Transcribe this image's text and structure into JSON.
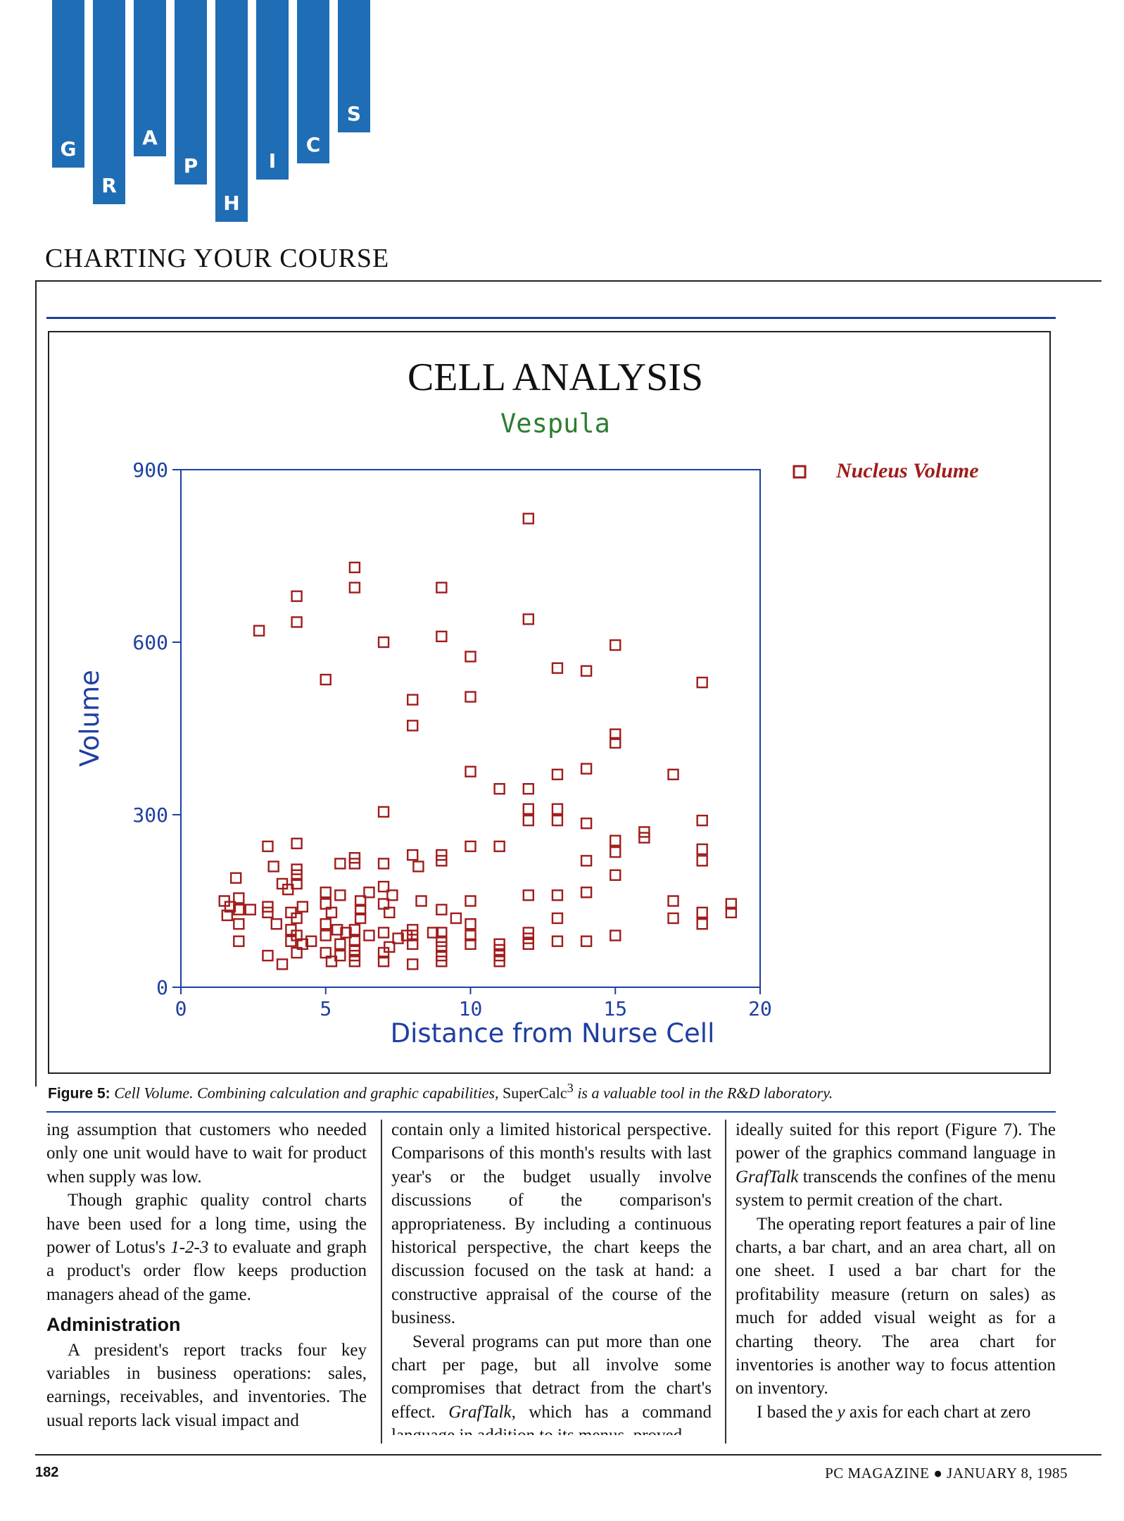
{
  "masthead": {
    "letters": [
      "G",
      "R",
      "A",
      "P",
      "H",
      "I",
      "C",
      "S"
    ],
    "accent_color": "#1f6db4"
  },
  "section_title": "CHARTING YOUR COURSE",
  "chart_data": {
    "type": "scatter",
    "title": "CELL ANALYSIS",
    "subtitle": "Vespula",
    "xlabel": "Distance from Nurse Cell",
    "ylabel": "Volume",
    "xlim": [
      0,
      20
    ],
    "ylim": [
      0,
      900
    ],
    "xticks": [
      0,
      5,
      10,
      15,
      20
    ],
    "yticks": [
      0,
      300,
      600,
      900
    ],
    "grid": false,
    "legend": {
      "placement": "top-right-outside",
      "entries": [
        "Nucleus Volume"
      ]
    },
    "colors": {
      "title": "#111111",
      "subtitle": "#2e7d32",
      "axis": "#1f3fa0",
      "marker": "#a01c1c"
    },
    "series": [
      {
        "name": "Nucleus Volume",
        "marker": "square",
        "points": [
          [
            12,
            815
          ],
          [
            6,
            730
          ],
          [
            6,
            695
          ],
          [
            9,
            695
          ],
          [
            4,
            680
          ],
          [
            4,
            635
          ],
          [
            12,
            640
          ],
          [
            2.7,
            620
          ],
          [
            7,
            600
          ],
          [
            9,
            610
          ],
          [
            15,
            595
          ],
          [
            10,
            575
          ],
          [
            13,
            555
          ],
          [
            14,
            550
          ],
          [
            18,
            530
          ],
          [
            5,
            535
          ],
          [
            8,
            500
          ],
          [
            10,
            505
          ],
          [
            8,
            455
          ],
          [
            15,
            440
          ],
          [
            15,
            425
          ],
          [
            10,
            375
          ],
          [
            14,
            380
          ],
          [
            13,
            370
          ],
          [
            17,
            370
          ],
          [
            11,
            345
          ],
          [
            12,
            345
          ],
          [
            7,
            305
          ],
          [
            12,
            310
          ],
          [
            13,
            310
          ],
          [
            12,
            290
          ],
          [
            13,
            290
          ],
          [
            14,
            285
          ],
          [
            18,
            290
          ],
          [
            16,
            270
          ],
          [
            16,
            260
          ],
          [
            15,
            255
          ],
          [
            15,
            235
          ],
          [
            18,
            240
          ],
          [
            18,
            220
          ],
          [
            3,
            245
          ],
          [
            4,
            250
          ],
          [
            10,
            245
          ],
          [
            11,
            245
          ],
          [
            8,
            230
          ],
          [
            9,
            230
          ],
          [
            9,
            220
          ],
          [
            14,
            220
          ],
          [
            6,
            225
          ],
          [
            6,
            215
          ],
          [
            5.5,
            215
          ],
          [
            7,
            215
          ],
          [
            8.2,
            210
          ],
          [
            3.2,
            210
          ],
          [
            4,
            205
          ],
          [
            4,
            195
          ],
          [
            3.5,
            180
          ],
          [
            4,
            180
          ],
          [
            1.9,
            190
          ],
          [
            3.7,
            170
          ],
          [
            15,
            195
          ],
          [
            5,
            165
          ],
          [
            5.5,
            160
          ],
          [
            6.5,
            165
          ],
          [
            7,
            175
          ],
          [
            7.3,
            160
          ],
          [
            6.2,
            150
          ],
          [
            6.2,
            135
          ],
          [
            5,
            145
          ],
          [
            5.2,
            130
          ],
          [
            7,
            145
          ],
          [
            7.2,
            130
          ],
          [
            8.3,
            150
          ],
          [
            10,
            150
          ],
          [
            12,
            160
          ],
          [
            13,
            160
          ],
          [
            14,
            165
          ],
          [
            17,
            150
          ],
          [
            17,
            120
          ],
          [
            19,
            145
          ],
          [
            19,
            130
          ],
          [
            18,
            130
          ],
          [
            18,
            110
          ],
          [
            1.5,
            150
          ],
          [
            1.7,
            140
          ],
          [
            1.6,
            125
          ],
          [
            2,
            155
          ],
          [
            2,
            135
          ],
          [
            2.4,
            135
          ],
          [
            2,
            110
          ],
          [
            2,
            80
          ],
          [
            3,
            140
          ],
          [
            3,
            130
          ],
          [
            3.3,
            110
          ],
          [
            3.8,
            130
          ],
          [
            4,
            120
          ],
          [
            4.2,
            140
          ],
          [
            3.8,
            100
          ],
          [
            4,
            90
          ],
          [
            3.8,
            80
          ],
          [
            4.2,
            75
          ],
          [
            4.5,
            80
          ],
          [
            9,
            135
          ],
          [
            9.5,
            120
          ],
          [
            10,
            110
          ],
          [
            10,
            90
          ],
          [
            10,
            75
          ],
          [
            9,
            95
          ],
          [
            9,
            80
          ],
          [
            8.7,
            95
          ],
          [
            8,
            100
          ],
          [
            8,
            90
          ],
          [
            8,
            75
          ],
          [
            13,
            120
          ],
          [
            13,
            80
          ],
          [
            14,
            80
          ],
          [
            15,
            90
          ],
          [
            12,
            95
          ],
          [
            12,
            85
          ],
          [
            12,
            75
          ],
          [
            11,
            75
          ],
          [
            11,
            65
          ],
          [
            11,
            55
          ],
          [
            11,
            45
          ],
          [
            9,
            70
          ],
          [
            9,
            55
          ],
          [
            9,
            45
          ],
          [
            8,
            40
          ],
          [
            7,
            60
          ],
          [
            7,
            45
          ],
          [
            6,
            80
          ],
          [
            6,
            65
          ],
          [
            6,
            55
          ],
          [
            6,
            45
          ],
          [
            5.5,
            75
          ],
          [
            5.5,
            55
          ],
          [
            5.2,
            45
          ],
          [
            5,
            60
          ],
          [
            3,
            55
          ],
          [
            3.5,
            40
          ],
          [
            4,
            60
          ],
          [
            6.2,
            120
          ],
          [
            6,
            100
          ],
          [
            6.5,
            90
          ],
          [
            7,
            95
          ],
          [
            7.5,
            85
          ],
          [
            7.8,
            90
          ],
          [
            5.7,
            95
          ],
          [
            5.4,
            100
          ],
          [
            5,
            110
          ],
          [
            5,
            90
          ],
          [
            7.2,
            70
          ]
        ]
      }
    ]
  },
  "caption": {
    "label": "Figure 5:",
    "text_before": "Cell Volume. Combining calculation and graphic capabilities,",
    "brand": "SuperCalc",
    "brand_sup": "3",
    "text_after": "is a valuable tool in the R&D laboratory."
  },
  "columns": {
    "col1": {
      "p1": "ing assumption that customers who needed only one unit would have to wait for product when supply was low.",
      "p2a": "Though graphic quality control charts have been used for a long time, using the power of Lotus's",
      "p2_emph": "1-2-3",
      "p2b": "to evaluate and graph a product's order flow keeps production managers ahead of the game.",
      "heading": "Administration",
      "p3": "A president's report tracks four key variables in business operations: sales, earnings, receivables, and inventories. The usual reports lack visual impact and"
    },
    "col2": {
      "p1": "contain only a limited historical perspective. Comparisons of this month's results with last year's or the budget usually involve discussions of the comparison's appropriateness. By including a continuous historical perspective, the chart keeps the discussion focused on the task at hand: a constructive appraisal of the course of the business.",
      "p2a": "Several programs can put more than one chart per page, but all involve some compromises that detract from the chart's effect.",
      "p2_emph": "GrafTalk,",
      "p2b": "which has a command language in addition to its menus, proved"
    },
    "col3": {
      "p1a": "ideally suited for this report (Figure 7). The power of the graphics command language in",
      "p1_emph": "GrafTalk",
      "p1b": "transcends the confines of the menu system to permit creation of the chart.",
      "p2": "The operating report features a pair of line charts, a bar chart, and an area chart, all on one sheet. I used a bar chart for the profitability measure (return on sales) as much for added visual weight as for a charting theory. The area chart for inventories is another way to focus attention on inventory.",
      "p3a": "I based the",
      "p3_emph": "y",
      "p3b": "axis for each chart at zero"
    }
  },
  "footer": {
    "page_number": "182",
    "magazine": "PC MAGAZINE ● JANUARY 8, 1985"
  }
}
